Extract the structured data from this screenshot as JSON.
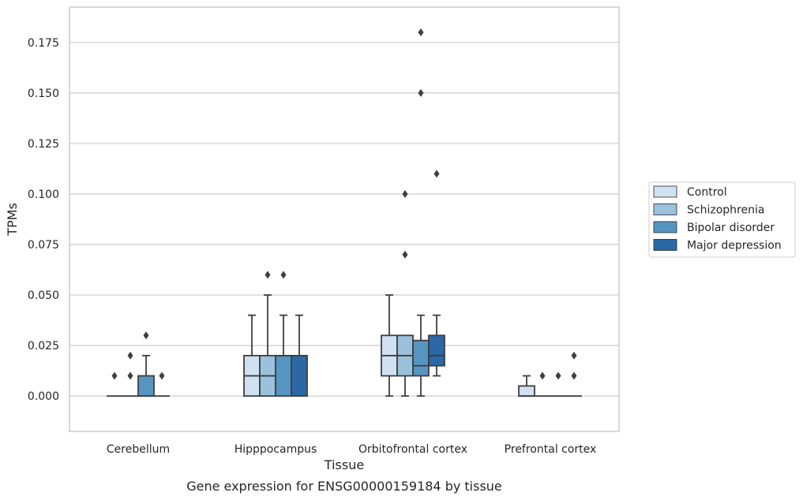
{
  "chart_data": {
    "type": "box",
    "caption": "Gene expression for ENSG00000159184 by tissue",
    "xlabel": "Tissue",
    "ylabel": "TPMs",
    "categories": [
      "Cerebellum",
      "Hipppocampus",
      "Orbitofrontal cortex",
      "Prefrontal cortex"
    ],
    "ylim": [
      -0.0175,
      0.1925
    ],
    "yticks": [
      0.0,
      0.025,
      0.05,
      0.075,
      0.1,
      0.125,
      0.15,
      0.175
    ],
    "ytick_labels": [
      "0.000",
      "0.025",
      "0.050",
      "0.075",
      "0.100",
      "0.125",
      "0.150",
      "0.175"
    ],
    "grid": "horizontal",
    "legend_position": "right",
    "series": [
      {
        "name": "Control",
        "color": "#d0e1f1",
        "boxes": [
          {
            "q1": 0.0,
            "median": 0.0,
            "q3": 0.0,
            "whisker_low": 0.0,
            "whisker_high": 0.0,
            "outliers": [
              0.01
            ]
          },
          {
            "q1": 0.0,
            "median": 0.01,
            "q3": 0.02,
            "whisker_low": 0.0,
            "whisker_high": 0.04,
            "outliers": []
          },
          {
            "q1": 0.01,
            "median": 0.02,
            "q3": 0.03,
            "whisker_low": 0.0,
            "whisker_high": 0.05,
            "outliers": []
          },
          {
            "q1": 0.0,
            "median": 0.0,
            "q3": 0.005,
            "whisker_low": 0.0,
            "whisker_high": 0.01,
            "outliers": []
          }
        ]
      },
      {
        "name": "Schizophrenia",
        "color": "#9ac2dc",
        "boxes": [
          {
            "q1": 0.0,
            "median": 0.0,
            "q3": 0.0,
            "whisker_low": 0.0,
            "whisker_high": 0.0,
            "outliers": [
              0.01,
              0.02
            ]
          },
          {
            "q1": 0.0,
            "median": 0.01,
            "q3": 0.02,
            "whisker_low": 0.0,
            "whisker_high": 0.05,
            "outliers": [
              0.06
            ]
          },
          {
            "q1": 0.01,
            "median": 0.02,
            "q3": 0.03,
            "whisker_low": 0.0,
            "whisker_high": 0.03,
            "outliers": [
              0.07,
              0.1
            ]
          },
          {
            "q1": 0.0,
            "median": 0.0,
            "q3": 0.0,
            "whisker_low": 0.0,
            "whisker_high": 0.0,
            "outliers": [
              0.01
            ]
          }
        ]
      },
      {
        "name": "Bipolar disorder",
        "color": "#5695c2",
        "boxes": [
          {
            "q1": 0.0,
            "median": 0.0,
            "q3": 0.01,
            "whisker_low": 0.0,
            "whisker_high": 0.02,
            "outliers": [
              0.03
            ]
          },
          {
            "q1": 0.0,
            "median": 0.02,
            "q3": 0.02,
            "whisker_low": 0.0,
            "whisker_high": 0.04,
            "outliers": [
              0.06
            ]
          },
          {
            "q1": 0.01,
            "median": 0.015,
            "q3": 0.0275,
            "whisker_low": 0.0,
            "whisker_high": 0.04,
            "outliers": [
              0.15,
              0.18
            ]
          },
          {
            "q1": 0.0,
            "median": 0.0,
            "q3": 0.0,
            "whisker_low": 0.0,
            "whisker_high": 0.0,
            "outliers": [
              0.01
            ]
          }
        ]
      },
      {
        "name": "Major depression",
        "color": "#2b68a6",
        "boxes": [
          {
            "q1": 0.0,
            "median": 0.0,
            "q3": 0.0,
            "whisker_low": 0.0,
            "whisker_high": 0.0,
            "outliers": [
              0.01
            ]
          },
          {
            "q1": 0.0,
            "median": 0.02,
            "q3": 0.02,
            "whisker_low": 0.0,
            "whisker_high": 0.04,
            "outliers": []
          },
          {
            "q1": 0.015,
            "median": 0.02,
            "q3": 0.03,
            "whisker_low": 0.01,
            "whisker_high": 0.04,
            "outliers": [
              0.11
            ]
          },
          {
            "q1": 0.0,
            "median": 0.0,
            "q3": 0.0,
            "whisker_low": 0.0,
            "whisker_high": 0.0,
            "outliers": [
              0.01,
              0.02
            ]
          }
        ]
      }
    ]
  }
}
